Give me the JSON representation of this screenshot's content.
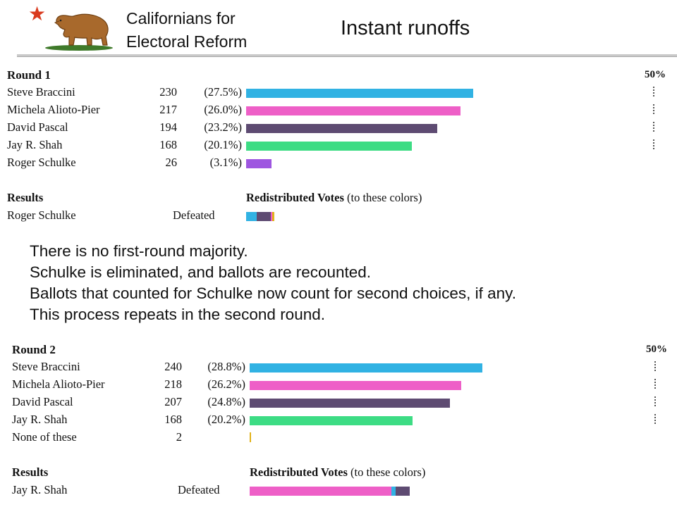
{
  "header": {
    "org_line1": "Californians for",
    "org_line2": "Electoral Reform",
    "title": "Instant runoffs",
    "logo": "california-bear-flag-logo",
    "star_icon": "red-star-icon"
  },
  "colors": {
    "braccini": "#31b2e3",
    "alioto": "#ee5fc7",
    "pascal": "#5e4b72",
    "shah": "#3ddc84",
    "schulke": "#9e56e0",
    "none": "#e2b21a"
  },
  "round1": {
    "heading": "Round 1",
    "majority_label": "50%",
    "rows": [
      {
        "name": "Steve Braccini",
        "votes": "230",
        "pct": "(27.5%)",
        "share": 27.5,
        "color": "#31b2e3"
      },
      {
        "name": "Michela Alioto-Pier",
        "votes": "217",
        "pct": "(26.0%)",
        "share": 26.0,
        "color": "#ee5fc7"
      },
      {
        "name": "David Pascal",
        "votes": "194",
        "pct": "(23.2%)",
        "share": 23.2,
        "color": "#5e4b72"
      },
      {
        "name": "Jay R. Shah",
        "votes": "168",
        "pct": "(20.1%)",
        "share": 20.1,
        "color": "#3ddc84"
      },
      {
        "name": "Roger Schulke",
        "votes": "26",
        "pct": "(3.1%)",
        "share": 3.1,
        "color": "#9e56e0"
      }
    ],
    "results_heading": "Results",
    "redistributed_bold": "Redistributed Votes",
    "redistributed_note": " (to these colors)",
    "result_name": "Roger Schulke",
    "result_status": "Defeated",
    "redistribution": [
      {
        "color": "#31b2e3",
        "votes": 10
      },
      {
        "color": "#5e4b72",
        "votes": 13
      },
      {
        "color": "#ee5fc7",
        "votes": 1
      },
      {
        "color": "#e2b21a",
        "votes": 2
      }
    ]
  },
  "notes": [
    "There is no first-round majority.",
    "Schulke is eliminated, and ballots are recounted.",
    "Ballots that counted for Schulke now count for second choices, if any.",
    "This process repeats in the second round."
  ],
  "round2": {
    "heading": "Round 2",
    "majority_label": "50%",
    "rows": [
      {
        "name": "Steve Braccini",
        "votes": "240",
        "pct": "(28.8%)",
        "share": 28.8,
        "color": "#31b2e3"
      },
      {
        "name": "Michela Alioto-Pier",
        "votes": "218",
        "pct": "(26.2%)",
        "share": 26.2,
        "color": "#ee5fc7"
      },
      {
        "name": "David Pascal",
        "votes": "207",
        "pct": "(24.8%)",
        "share": 24.8,
        "color": "#5e4b72"
      },
      {
        "name": "Jay R. Shah",
        "votes": "168",
        "pct": "(20.2%)",
        "share": 20.2,
        "color": "#3ddc84"
      },
      {
        "name": "None of these",
        "votes": "2",
        "pct": "",
        "share": 0.2,
        "color": "#e2b21a"
      }
    ],
    "results_heading": "Results",
    "redistributed_bold": "Redistributed Votes",
    "redistributed_note": " (to these colors)",
    "result_name": "Jay R. Shah",
    "result_status": "Defeated",
    "redistribution": [
      {
        "color": "#ee5fc7",
        "votes": 132
      },
      {
        "color": "#31b2e3",
        "votes": 4
      },
      {
        "color": "#5e4b72",
        "votes": 13
      }
    ]
  }
}
